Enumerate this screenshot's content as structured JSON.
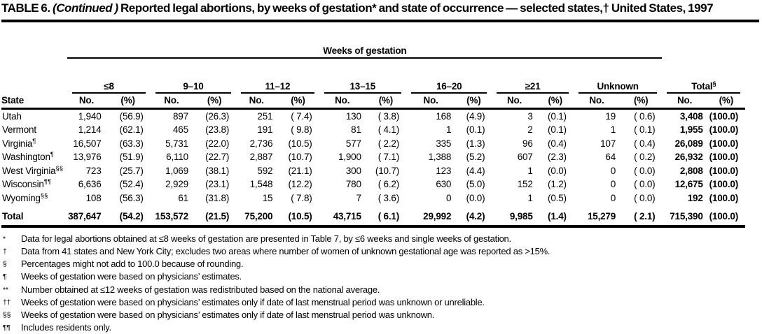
{
  "title": {
    "prefix": "TABLE 6. ",
    "continued": "(Continued )",
    "rest": " Reported legal abortions, by weeks of gestation* and state of occurrence — selected states,† United States, 1997"
  },
  "table": {
    "spanner_label": "Weeks of gestation",
    "state_label": "State",
    "no_label": "No.",
    "pct_label": "(%)",
    "groups": [
      {
        "label": "≤8",
        "sup": ""
      },
      {
        "label": "9–10",
        "sup": ""
      },
      {
        "label": "11–12",
        "sup": ""
      },
      {
        "label": "13–15",
        "sup": ""
      },
      {
        "label": "16–20",
        "sup": ""
      },
      {
        "label": "≥21",
        "sup": ""
      },
      {
        "label": "Unknown",
        "sup": ""
      },
      {
        "label": "Total",
        "sup": "§"
      }
    ],
    "rows": [
      {
        "state": "Utah",
        "sup": "",
        "cells": [
          "1,940",
          "(56.9)",
          "897",
          "(26.3)",
          "251",
          "( 7.4)",
          "130",
          "( 3.8)",
          "168",
          "(4.9)",
          "3",
          "(0.1)",
          "19",
          "( 0.6)",
          "3,408",
          "(100.0)"
        ]
      },
      {
        "state": "Vermont",
        "sup": "",
        "cells": [
          "1,214",
          "(62.1)",
          "465",
          "(23.8)",
          "191",
          "( 9.8)",
          "81",
          "( 4.1)",
          "1",
          "(0.1)",
          "2",
          "(0.1)",
          "1",
          "( 0.1)",
          "1,955",
          "(100.0)"
        ]
      },
      {
        "state": "Virginia",
        "sup": "¶",
        "cells": [
          "16,507",
          "(63.3)",
          "5,731",
          "(22.0)",
          "2,736",
          "(10.5)",
          "577",
          "( 2.2)",
          "335",
          "(1.3)",
          "96",
          "(0.4)",
          "107",
          "( 0.4)",
          "26,089",
          "(100.0)"
        ]
      },
      {
        "state": "Washington",
        "sup": "¶",
        "cells": [
          "13,976",
          "(51.9)",
          "6,110",
          "(22.7)",
          "2,887",
          "(10.7)",
          "1,900",
          "( 7.1)",
          "1,388",
          "(5.2)",
          "607",
          "(2.3)",
          "64",
          "( 0.2)",
          "26,932",
          "(100.0)"
        ]
      },
      {
        "state": "West Virginia",
        "sup": "§§",
        "cells": [
          "723",
          "(25.7)",
          "1,069",
          "(38.1)",
          "592",
          "(21.1)",
          "300",
          "(10.7)",
          "123",
          "(4.4)",
          "1",
          "(0.0)",
          "0",
          "( 0.0)",
          "2,808",
          "(100.0)"
        ]
      },
      {
        "state": "Wisconsin",
        "sup": "¶¶",
        "cells": [
          "6,636",
          "(52.4)",
          "2,929",
          "(23.1)",
          "1,548",
          "(12.2)",
          "780",
          "( 6.2)",
          "630",
          "(5.0)",
          "152",
          "(1.2)",
          "0",
          "( 0.0)",
          "12,675",
          "(100.0)"
        ]
      },
      {
        "state": "Wyoming",
        "sup": "§§",
        "cells": [
          "108",
          "(56.3)",
          "61",
          "(31.8)",
          "15",
          "( 7.8)",
          "7",
          "( 3.6)",
          "0",
          "(0.0)",
          "1",
          "(0.5)",
          "0",
          "( 0.0)",
          "192",
          "(100.0)"
        ]
      }
    ],
    "total_row": {
      "state": "Total",
      "sup": "",
      "cells": [
        "387,647",
        "(54.2)",
        "153,572",
        "(21.5)",
        "75,200",
        "(10.5)",
        "43,715",
        "( 6.1)",
        "29,992",
        "(4.2)",
        "9,985",
        "(1.4)",
        "15,279",
        "( 2.1)",
        "715,390",
        "(100.0)"
      ]
    }
  },
  "footnotes": [
    {
      "marker": "*",
      "text": "Data for legal abortions obtained at ≤8 weeks of gestation are presented in Table 7, by ≤6 weeks and single weeks of gestation."
    },
    {
      "marker": "†",
      "text": "Data from 41 states and New York City; excludes two areas where number of women of unknown gestational age was reported as >15%."
    },
    {
      "marker": "§",
      "text": "Percentages might not add to 100.0 because of rounding."
    },
    {
      "marker": "¶",
      "text": "Weeks of gestation were based on physicians’ estimates."
    },
    {
      "marker": "**",
      "text": "Number obtained at ≤12 weeks of gestation was redistributed based on the national average."
    },
    {
      "marker": "††",
      "text": "Weeks of gestation were based on physicians’ estimates only if date of last menstrual period was unknown or unreliable."
    },
    {
      "marker": "§§",
      "text": "Weeks of gestation were based on physicians’ estimates only if date of last menstrual period was unknown."
    },
    {
      "marker": "¶¶",
      "text": "Includes residents only."
    }
  ]
}
